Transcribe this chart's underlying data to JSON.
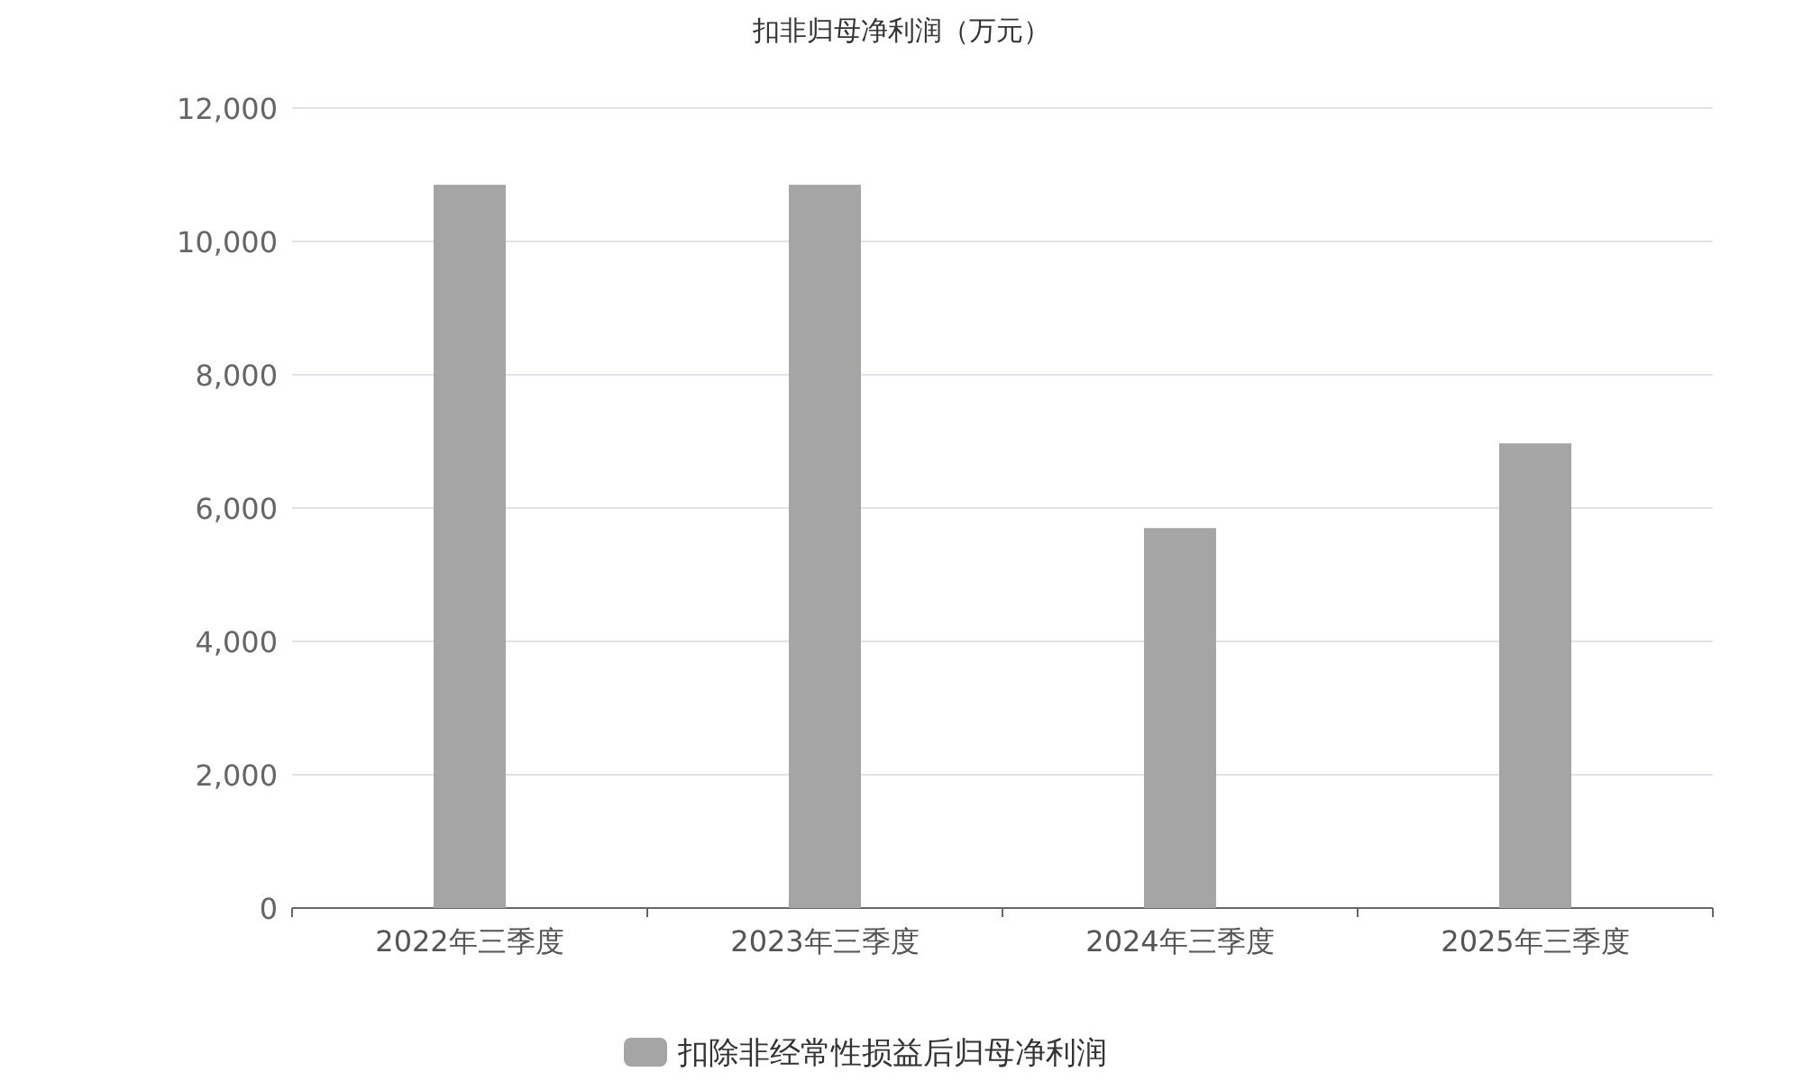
{
  "chart_data": {
    "type": "bar",
    "title": "扣非归母净利润（万元）",
    "categories": [
      "2022年三季度",
      "2023年三季度",
      "2024年三季度",
      "2025年三季度"
    ],
    "series": [
      {
        "name": "扣除非经常性损益后归母净利润",
        "color": "#a5a5a5",
        "values": [
          10850,
          10850,
          5700,
          6970
        ]
      }
    ],
    "ylim": [
      0,
      12000
    ],
    "yticks": [
      {
        "value": 0,
        "label": "0"
      },
      {
        "value": 2000,
        "label": "2,000"
      },
      {
        "value": 4000,
        "label": "4,000"
      },
      {
        "value": 6000,
        "label": "6,000"
      },
      {
        "value": 8000,
        "label": "8,000"
      },
      {
        "value": 10000,
        "label": "10,000"
      },
      {
        "value": 12000,
        "label": "12,000"
      }
    ],
    "grid": "y",
    "legend": "bottom"
  }
}
